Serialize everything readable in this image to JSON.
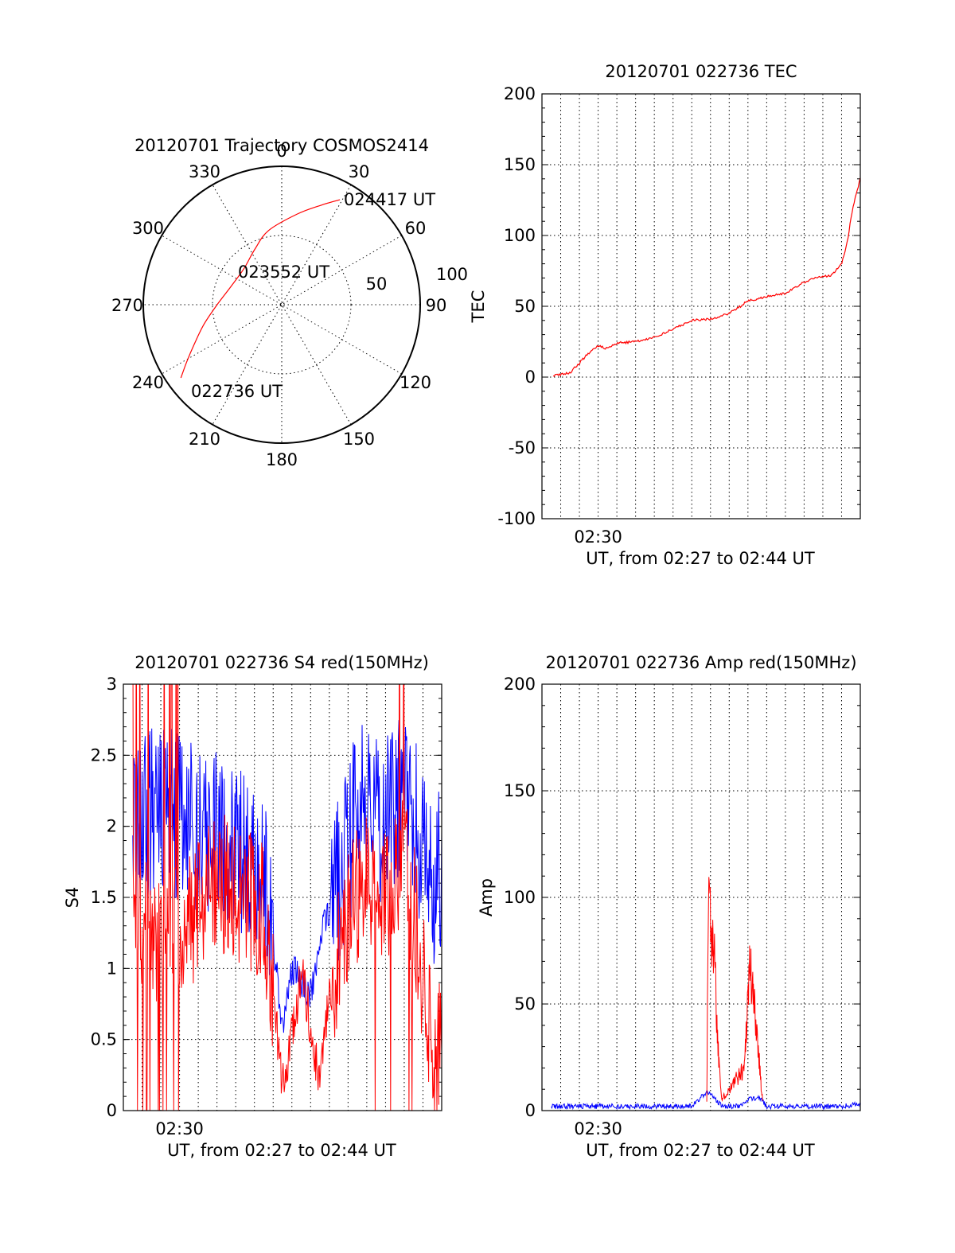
{
  "colors": {
    "red": "#ff0000",
    "blue": "#0000ff",
    "black": "#000000"
  },
  "chart_data": [
    {
      "type": "polar",
      "title": "20120701 Trajectory COSMOS2414",
      "azimuth_labels": [
        "0",
        "30",
        "60",
        "90",
        "120",
        "150",
        "180",
        "210",
        "240",
        "270",
        "300",
        "330"
      ],
      "radial_labels": [
        "50",
        "100"
      ],
      "annotations": [
        "024417 UT",
        "023552 UT",
        "022736 UT"
      ],
      "series": [
        {
          "color": "#ff0000",
          "points": [
            {
              "azimuth": 234,
              "elevation": 9
            },
            {
              "azimuth": 239,
              "elevation": 18
            },
            {
              "azimuth": 246,
              "elevation": 28
            },
            {
              "azimuth": 256,
              "elevation": 38
            },
            {
              "azimuth": 270,
              "elevation": 48
            },
            {
              "azimuth": 290,
              "elevation": 55
            },
            {
              "azimuth": 314,
              "elevation": 56
            },
            {
              "azimuth": 334,
              "elevation": 50
            },
            {
              "azimuth": 350,
              "elevation": 41
            },
            {
              "azimuth": 10,
              "elevation": 30
            },
            {
              "azimuth": 22,
              "elevation": 20
            },
            {
              "azimuth": 29,
              "elevation": 12
            }
          ]
        }
      ]
    },
    {
      "type": "line",
      "title": "20120701 022736 TEC",
      "ylabel": "TEC",
      "xlabel": "UT, from 02:27 to 02:44 UT",
      "xtick_label": "02:30",
      "x_unit": "minutes after 02:27",
      "xlim": [
        0,
        17
      ],
      "ylim": [
        -100,
        200
      ],
      "yticks": [
        -100,
        -50,
        0,
        50,
        100,
        150,
        200
      ],
      "xticks": [
        3
      ],
      "grid": true,
      "series": [
        {
          "color": "#ff0000",
          "x": [
            0.6,
            1.5,
            2.0,
            2.5,
            3.0,
            3.5,
            4.0,
            5.0,
            6.0,
            7.0,
            8.0,
            9.0,
            10.0,
            10.6,
            11.0,
            11.5,
            12.0,
            13.0,
            13.6,
            14.0,
            14.5,
            15.0,
            15.5,
            16.0,
            16.3,
            16.6,
            17.0
          ],
          "values": [
            1,
            3,
            10,
            17,
            22,
            20,
            24,
            25,
            28,
            34,
            40,
            41,
            45,
            50,
            54,
            55,
            57,
            59,
            64,
            67,
            70,
            71,
            72,
            80,
            95,
            120,
            140
          ]
        }
      ]
    },
    {
      "type": "line",
      "title": "20120701 022736 S4 red(150MHz)",
      "ylabel": "S4",
      "xlabel": "UT, from 02:27 to 02:44 UT",
      "xtick_label": "02:30",
      "x_unit": "minutes after 02:27",
      "xlim": [
        0,
        17
      ],
      "ylim": [
        0,
        3
      ],
      "yticks": [
        0,
        0.5,
        1,
        1.5,
        2,
        2.5,
        3
      ],
      "ytick_labels": [
        "0",
        "0.5",
        "1",
        "1.5",
        "2",
        "2.5",
        "3"
      ],
      "xticks": [
        3
      ],
      "grid": true,
      "series": [
        {
          "color": "#0000ff",
          "x": [
            0.5,
            1.5,
            2.5,
            3.5,
            4.5,
            5.5,
            6.5,
            7.5,
            8.0,
            8.5,
            9.0,
            9.5,
            10.0,
            10.5,
            11.0,
            11.5,
            12.0,
            12.5,
            13.0,
            13.5,
            14.0,
            14.5,
            15.0,
            15.5,
            16.0,
            16.5,
            17.0
          ],
          "values": [
            2.0,
            2.1,
            2.1,
            2.0,
            2.0,
            1.9,
            1.8,
            1.6,
            1.2,
            0.6,
            1.0,
            0.9,
            0.8,
            1.2,
            1.4,
            1.6,
            1.9,
            2.1,
            2.2,
            2.1,
            2.0,
            2.2,
            2.3,
            2.1,
            1.8,
            1.6,
            1.7
          ]
        },
        {
          "color": "#ff0000",
          "x": [
            0.5,
            1.5,
            2.5,
            3.5,
            4.5,
            5.5,
            6.5,
            7.5,
            8.0,
            8.5,
            9.0,
            9.5,
            10.0,
            10.5,
            11.0,
            11.5,
            12.0,
            12.5,
            13.0,
            13.5,
            14.0,
            14.5,
            15.0,
            15.5,
            16.0,
            16.5,
            17.0
          ],
          "values": [
            1.5,
            1.2,
            1.4,
            1.3,
            1.5,
            1.6,
            1.5,
            1.4,
            0.8,
            0.2,
            0.5,
            1.0,
            0.6,
            0.2,
            0.8,
            1.1,
            1.3,
            1.5,
            1.6,
            1.4,
            1.5,
            1.7,
            1.8,
            1.4,
            0.9,
            0.4,
            0.4
          ]
        }
      ]
    },
    {
      "type": "line",
      "title": "20120701 022736 Amp red(150MHz)",
      "ylabel": "Amp",
      "xlabel": "UT, from 02:27 to 02:44 UT",
      "xtick_label": "02:30",
      "x_unit": "minutes after 02:27",
      "xlim": [
        0,
        17
      ],
      "ylim": [
        0,
        200
      ],
      "yticks": [
        0,
        50,
        100,
        150,
        200
      ],
      "xticks": [
        3
      ],
      "grid": true,
      "series": [
        {
          "color": "#0000ff",
          "x": [
            0.5,
            2.0,
            4.0,
            6.0,
            8.0,
            8.8,
            9.0,
            9.6,
            10.5,
            11.0,
            11.6,
            12.0,
            14.0,
            16.0,
            17.0
          ],
          "values": [
            2,
            2,
            2,
            2,
            2,
            9,
            8,
            2,
            2,
            5,
            6,
            2,
            2,
            2,
            3
          ]
        },
        {
          "color": "#ff0000",
          "x": [
            8.8,
            8.9,
            9.0,
            9.1,
            9.2,
            9.3,
            9.4,
            9.5,
            9.6,
            10.8,
            11.0,
            11.1,
            11.2,
            11.3,
            11.4,
            11.5,
            11.6,
            11.7,
            11.8
          ],
          "values": [
            5,
            110,
            95,
            70,
            90,
            50,
            30,
            20,
            5,
            20,
            55,
            70,
            60,
            50,
            45,
            35,
            25,
            12,
            4
          ]
        }
      ]
    }
  ]
}
